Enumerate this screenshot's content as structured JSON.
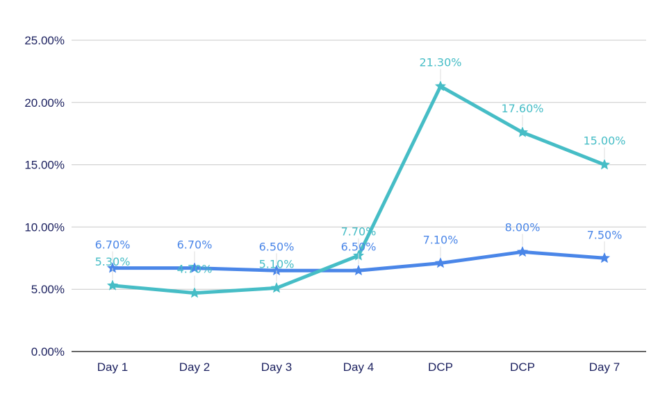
{
  "chart_data": {
    "type": "line",
    "categories": [
      "Day 1",
      "Day 2",
      "Day 3",
      "Day 4",
      "DCP",
      "DCP",
      "Day 7"
    ],
    "ylim": [
      0,
      25
    ],
    "yticks": [
      "0.00%",
      "5.00%",
      "10.00%",
      "15.00%",
      "20.00%",
      "25.00%"
    ],
    "grid": true,
    "marker": "star",
    "series": [
      {
        "color": "#4a86e8",
        "values": [
          6.7,
          6.7,
          6.5,
          6.5,
          7.1,
          8.0,
          7.5
        ],
        "labels": [
          "6.70%",
          "6.70%",
          "6.50%",
          "6.50%",
          "7.10%",
          "8.00%",
          "7.50%"
        ]
      },
      {
        "color": "#46bdc6",
        "values": [
          5.3,
          4.7,
          5.1,
          7.7,
          21.3,
          17.6,
          15.0
        ],
        "labels": [
          "5.30%",
          "4.70%",
          "5.10%",
          "7.70%",
          "21.30%",
          "17.60%",
          "15.00%"
        ]
      }
    ]
  }
}
